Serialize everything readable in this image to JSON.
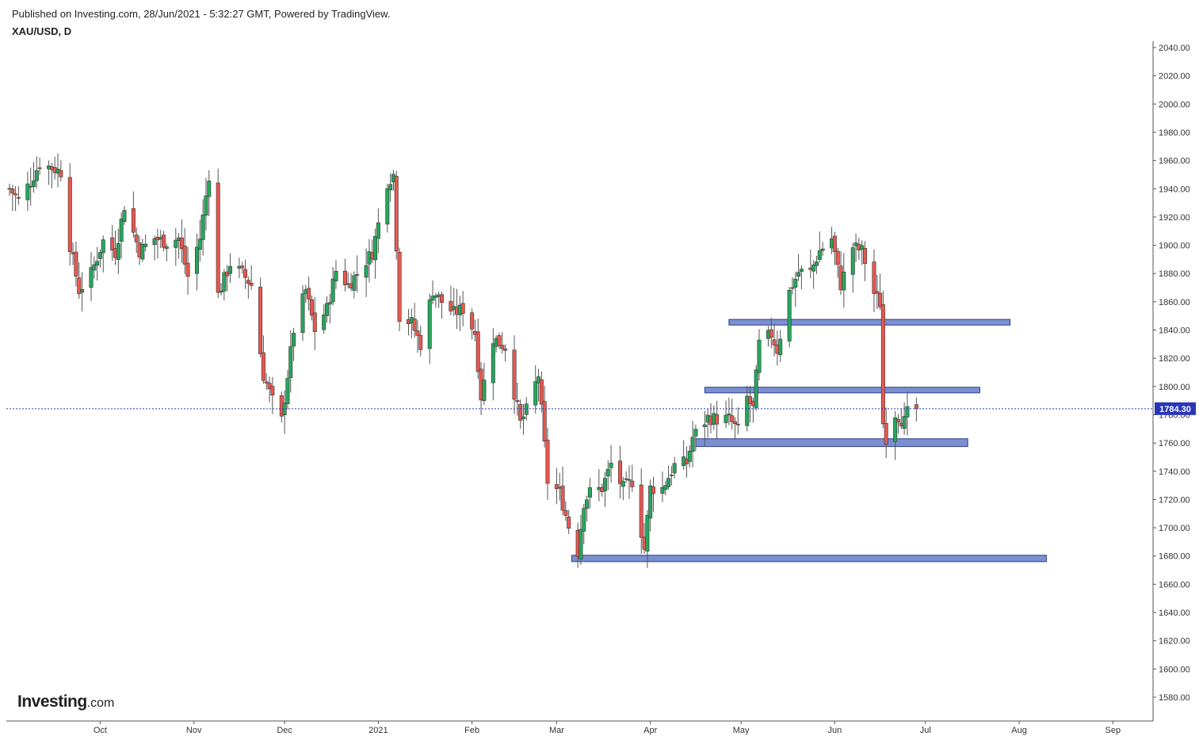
{
  "header": {
    "published": "Published on Investing.com, 28/Jun/2021 - 5:32:27 GMT, Powered by TradingView.",
    "symbol": "XAU/USD, D"
  },
  "logo": {
    "brand": "Investing",
    "suffix": ".com"
  },
  "chart_data": {
    "type": "candlestick",
    "symbol": "XAU/USD",
    "interval": "D",
    "ylim": [
      1565,
      2043
    ],
    "yticks": [
      1580,
      1600,
      1620,
      1640,
      1660,
      1680,
      1700,
      1720,
      1740,
      1760,
      1780,
      1800,
      1820,
      1840,
      1860,
      1880,
      1900,
      1920,
      1940,
      1960,
      1980,
      2000,
      2020,
      2040
    ],
    "ytick_labels": [
      "1580.00",
      "1600.00",
      "1620.00",
      "1640.00",
      "1660.00",
      "1680.00",
      "1700.00",
      "1720.00",
      "1740.00",
      "1760.00",
      "1780.00",
      "1800.00",
      "1820.00",
      "1840.00",
      "1860.00",
      "1880.00",
      "1900.00",
      "1920.00",
      "1940.00",
      "1960.00",
      "1980.00",
      "2000.00",
      "2020.00",
      "2040.00"
    ],
    "x_start_date": "2020-09-01",
    "x_end_date": "2021-09-08",
    "xtick_dates": [
      "2020-10-01",
      "2020-11-01",
      "2020-12-01",
      "2021-01-01",
      "2021-02-01",
      "2021-03-01",
      "2021-04-01",
      "2021-05-01",
      "2021-06-01",
      "2021-07-01",
      "2021-08-01",
      "2021-09-01"
    ],
    "xtick_labels": [
      "Oct",
      "Nov",
      "Dec",
      "2021",
      "Feb",
      "Mar",
      "Apr",
      "May",
      "Jun",
      "Jul",
      "Aug",
      "Sep"
    ],
    "last_price": 1784.3,
    "last_price_label": "1784.30",
    "colors": {
      "up": "#26a65b",
      "down": "#e8574f",
      "wick": "#555555",
      "zone_fill": "#7b8fd1",
      "zone_stroke": "#2c3e8c",
      "price_line": "#2a36b8",
      "price_tag": "#2a36b8"
    },
    "zones": [
      {
        "name": "resistance-1845",
        "y_low": 1843.5,
        "y_high": 1847.5,
        "x_from": "2021-04-27",
        "x_to": "2021-07-29"
      },
      {
        "name": "resistance-1797",
        "y_low": 1795.5,
        "y_high": 1799.5,
        "x_from": "2021-04-19",
        "x_to": "2021-07-19"
      },
      {
        "name": "support-1760",
        "y_low": 1757.5,
        "y_high": 1763.0,
        "x_from": "2021-04-16",
        "x_to": "2021-07-15"
      },
      {
        "name": "support-1678",
        "y_low": 1676.0,
        "y_high": 1680.5,
        "x_from": "2021-03-06",
        "x_to": "2021-08-10"
      }
    ],
    "anchors": [
      [
        "2020-09-01",
        1940
      ],
      [
        "2020-09-04",
        1932
      ],
      [
        "2020-09-08",
        1945
      ],
      [
        "2020-09-11",
        1958
      ],
      [
        "2020-09-15",
        1955
      ],
      [
        "2020-09-18",
        1952
      ],
      [
        "2020-09-21",
        1900
      ],
      [
        "2020-09-24",
        1868
      ],
      [
        "2020-09-28",
        1880
      ],
      [
        "2020-10-02",
        1903
      ],
      [
        "2020-10-06",
        1895
      ],
      [
        "2020-10-09",
        1928
      ],
      [
        "2020-10-14",
        1896
      ],
      [
        "2020-10-19",
        1905
      ],
      [
        "2020-10-23",
        1902
      ],
      [
        "2020-10-27",
        1905
      ],
      [
        "2020-10-30",
        1878
      ],
      [
        "2020-11-03",
        1905
      ],
      [
        "2020-11-06",
        1950
      ],
      [
        "2020-11-09",
        1865
      ],
      [
        "2020-11-13",
        1887
      ],
      [
        "2020-11-17",
        1880
      ],
      [
        "2020-11-20",
        1872
      ],
      [
        "2020-11-24",
        1808
      ],
      [
        "2020-11-27",
        1790
      ],
      [
        "2020-11-30",
        1776
      ],
      [
        "2020-12-04",
        1840
      ],
      [
        "2020-12-08",
        1868
      ],
      [
        "2020-12-11",
        1840
      ],
      [
        "2020-12-15",
        1855
      ],
      [
        "2020-12-18",
        1882
      ],
      [
        "2020-12-22",
        1872
      ],
      [
        "2020-12-25",
        1880
      ],
      [
        "2020-12-30",
        1895
      ],
      [
        "2021-01-04",
        1945
      ],
      [
        "2021-01-06",
        1950
      ],
      [
        "2021-01-08",
        1850
      ],
      [
        "2021-01-12",
        1845
      ],
      [
        "2021-01-15",
        1830
      ],
      [
        "2021-01-19",
        1868
      ],
      [
        "2021-01-22",
        1860
      ],
      [
        "2021-01-26",
        1852
      ],
      [
        "2021-01-29",
        1855
      ],
      [
        "2021-02-02",
        1838
      ],
      [
        "2021-02-04",
        1793
      ],
      [
        "2021-02-08",
        1834
      ],
      [
        "2021-02-12",
        1828
      ],
      [
        "2021-02-17",
        1774
      ],
      [
        "2021-02-19",
        1783
      ],
      [
        "2021-02-23",
        1808
      ],
      [
        "2021-02-26",
        1733
      ],
      [
        "2021-03-02",
        1725
      ],
      [
        "2021-03-05",
        1701
      ],
      [
        "2021-03-08",
        1683
      ],
      [
        "2021-03-10",
        1718
      ],
      [
        "2021-03-12",
        1725
      ],
      [
        "2021-03-16",
        1728
      ],
      [
        "2021-03-19",
        1745
      ],
      [
        "2021-03-23",
        1728
      ],
      [
        "2021-03-26",
        1733
      ],
      [
        "2021-03-30",
        1685
      ],
      [
        "2021-04-01",
        1728
      ],
      [
        "2021-04-05",
        1728
      ],
      [
        "2021-04-09",
        1744
      ],
      [
        "2021-04-13",
        1746
      ],
      [
        "2021-04-15",
        1764
      ],
      [
        "2021-04-20",
        1778
      ],
      [
        "2021-04-23",
        1777
      ],
      [
        "2021-04-27",
        1777
      ],
      [
        "2021-04-30",
        1769
      ],
      [
        "2021-05-03",
        1792
      ],
      [
        "2021-05-05",
        1784
      ],
      [
        "2021-05-07",
        1830
      ],
      [
        "2021-05-11",
        1837
      ],
      [
        "2021-05-13",
        1826
      ],
      [
        "2021-05-17",
        1867
      ],
      [
        "2021-05-20",
        1881
      ],
      [
        "2021-05-24",
        1881
      ],
      [
        "2021-05-27",
        1896
      ],
      [
        "2021-05-31",
        1905
      ],
      [
        "2021-06-03",
        1872
      ],
      [
        "2021-06-07",
        1899
      ],
      [
        "2021-06-10",
        1896
      ],
      [
        "2021-06-14",
        1866
      ],
      [
        "2021-06-16",
        1859
      ],
      [
        "2021-06-17",
        1774
      ],
      [
        "2021-06-18",
        1764
      ],
      [
        "2021-06-21",
        1781
      ],
      [
        "2021-06-24",
        1775
      ],
      [
        "2021-06-25",
        1781
      ],
      [
        "2021-06-28",
        1784.3
      ]
    ]
  }
}
